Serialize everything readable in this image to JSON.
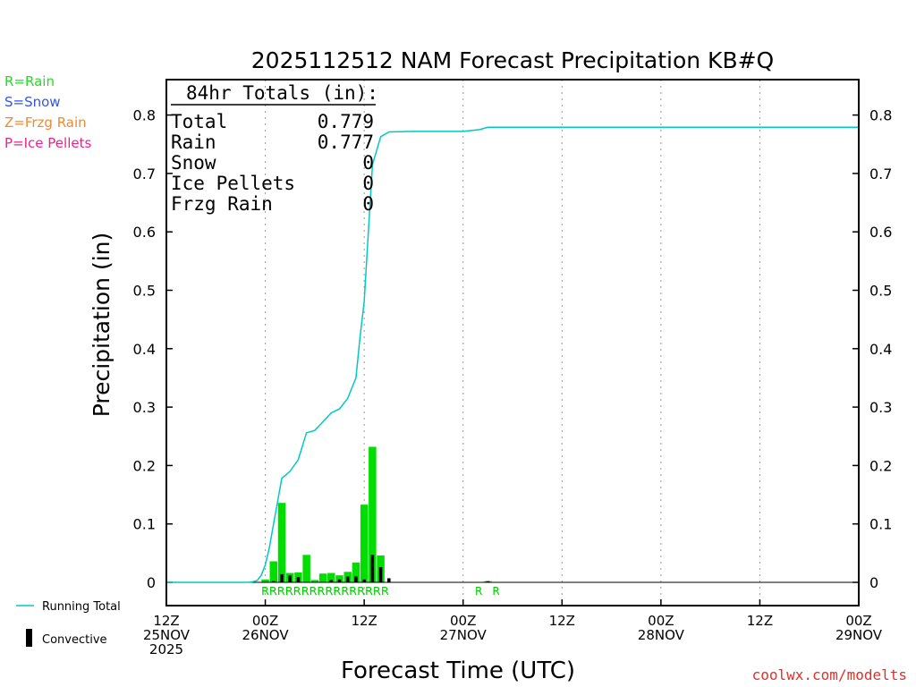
{
  "chart_data": {
    "type": "bar",
    "title": "2025112512 NAM Forecast Precipitation KB#Q",
    "xlabel": "Forecast Time (UTC)",
    "ylabel": "Precipitation (in)",
    "ylim": [
      0,
      0.8
    ],
    "y_ticks": [
      "0",
      "0.1",
      "0.2",
      "0.3",
      "0.4",
      "0.5",
      "0.6",
      "0.7",
      "0.8"
    ],
    "xlim_hours": [
      0,
      84
    ],
    "x_ticks": [
      {
        "hour": 0,
        "lines": [
          "12Z",
          "25NOV",
          "2025"
        ]
      },
      {
        "hour": 12,
        "lines": [
          "00Z",
          "26NOV"
        ]
      },
      {
        "hour": 24,
        "lines": [
          "12Z"
        ]
      },
      {
        "hour": 36,
        "lines": [
          "00Z",
          "27NOV"
        ]
      },
      {
        "hour": 48,
        "lines": [
          "12Z"
        ]
      },
      {
        "hour": 60,
        "lines": [
          "00Z",
          "28NOV"
        ]
      },
      {
        "hour": 72,
        "lines": [
          "12Z"
        ]
      },
      {
        "hour": 84,
        "lines": [
          "00Z",
          "29NOV"
        ]
      }
    ],
    "grid_hours": [
      12,
      24,
      36,
      48,
      60,
      72
    ],
    "series": [
      {
        "name": "Hourly precipitation",
        "color": "#00dd00",
        "hours": [
          12,
          13,
          14,
          15,
          16,
          17,
          18,
          19,
          20,
          21,
          22,
          23,
          24,
          25,
          26,
          39
        ],
        "values": [
          0.005,
          0.036,
          0.136,
          0.016,
          0.017,
          0.047,
          0.004,
          0.015,
          0.016,
          0.012,
          0.018,
          0.034,
          0.133,
          0.232,
          0.046,
          0.002
        ]
      },
      {
        "name": "Convective",
        "color": "#000000",
        "hours": [
          13,
          14,
          15,
          16,
          20,
          21,
          22,
          23,
          24,
          25,
          26,
          27,
          39
        ],
        "values": [
          0.002,
          0.014,
          0.012,
          0.009,
          0.004,
          0.005,
          0.01,
          0.01,
          0.005,
          0.047,
          0.026,
          0.007,
          0.002
        ]
      },
      {
        "name": "Running Total",
        "color": "#00c8c8",
        "type": "line",
        "x": [
          0,
          10,
          10.5,
          11,
          11.5,
          12,
          12.5,
          13,
          14,
          15,
          16,
          17,
          18,
          19,
          20,
          21,
          22,
          23,
          23.5,
          24,
          24.5,
          25,
          26,
          27,
          30,
          36,
          38,
          39,
          84
        ],
        "y": [
          0,
          0,
          0.001,
          0.003,
          0.012,
          0.03,
          0.06,
          0.1,
          0.178,
          0.19,
          0.21,
          0.256,
          0.26,
          0.275,
          0.29,
          0.297,
          0.315,
          0.35,
          0.42,
          0.48,
          0.6,
          0.715,
          0.763,
          0.771,
          0.772,
          0.772,
          0.775,
          0.779,
          0.779
        ]
      }
    ],
    "precip_type_labels": [
      {
        "text": "RRRRRRRRRRRRRRRR",
        "hour_start": 11.5,
        "hour_end": 27
      },
      {
        "text": "R",
        "hour": 37.9
      },
      {
        "text": "R",
        "hour": 40
      }
    ],
    "totals_box": {
      "header": "84hr Totals (in):",
      "rows": [
        {
          "label": "Total",
          "value": "0.779"
        },
        {
          "label": "Rain",
          "value": "0.777"
        },
        {
          "label": "Snow",
          "value": "0"
        },
        {
          "label": "Ice Pellets",
          "value": "0"
        },
        {
          "label": "Frzg Rain",
          "value": "0"
        }
      ]
    },
    "type_legend": [
      {
        "text": "R=Rain",
        "color": "#22dd22"
      },
      {
        "text": "S=Snow",
        "color": "#3355ee"
      },
      {
        "text": "Z=Frzg Rain",
        "color": "#f08a30"
      },
      {
        "text": "P=Ice Pellets",
        "color": "#e8248c"
      }
    ],
    "series_legend": {
      "running_total": "Running Total",
      "convective": "Convective"
    },
    "credit": "coolwx.com/modelts"
  }
}
